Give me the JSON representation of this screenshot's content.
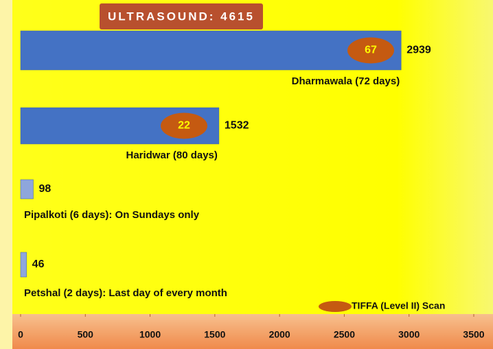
{
  "chart_data": {
    "type": "bar",
    "orientation": "horizontal",
    "title": "ULTRASOUND: 4615",
    "categories": [
      "Dharmawala (72 days)",
      "Haridwar (80 days)",
      "Pipalkoti (6 days): On Sundays only",
      "Petshal (2 days): Last day of every month"
    ],
    "series": [
      {
        "name": "Ultrasound",
        "color": "#4472c4",
        "values": [
          2939,
          1532,
          98,
          46
        ]
      },
      {
        "name": "TIFFA (Level II) Scan",
        "color": "#c55a11",
        "values": [
          67,
          22,
          null,
          null
        ]
      }
    ],
    "xlim": [
      0,
      3500
    ],
    "xticks": [
      0,
      500,
      1000,
      1500,
      2000,
      2500,
      3000,
      3500
    ]
  }
}
